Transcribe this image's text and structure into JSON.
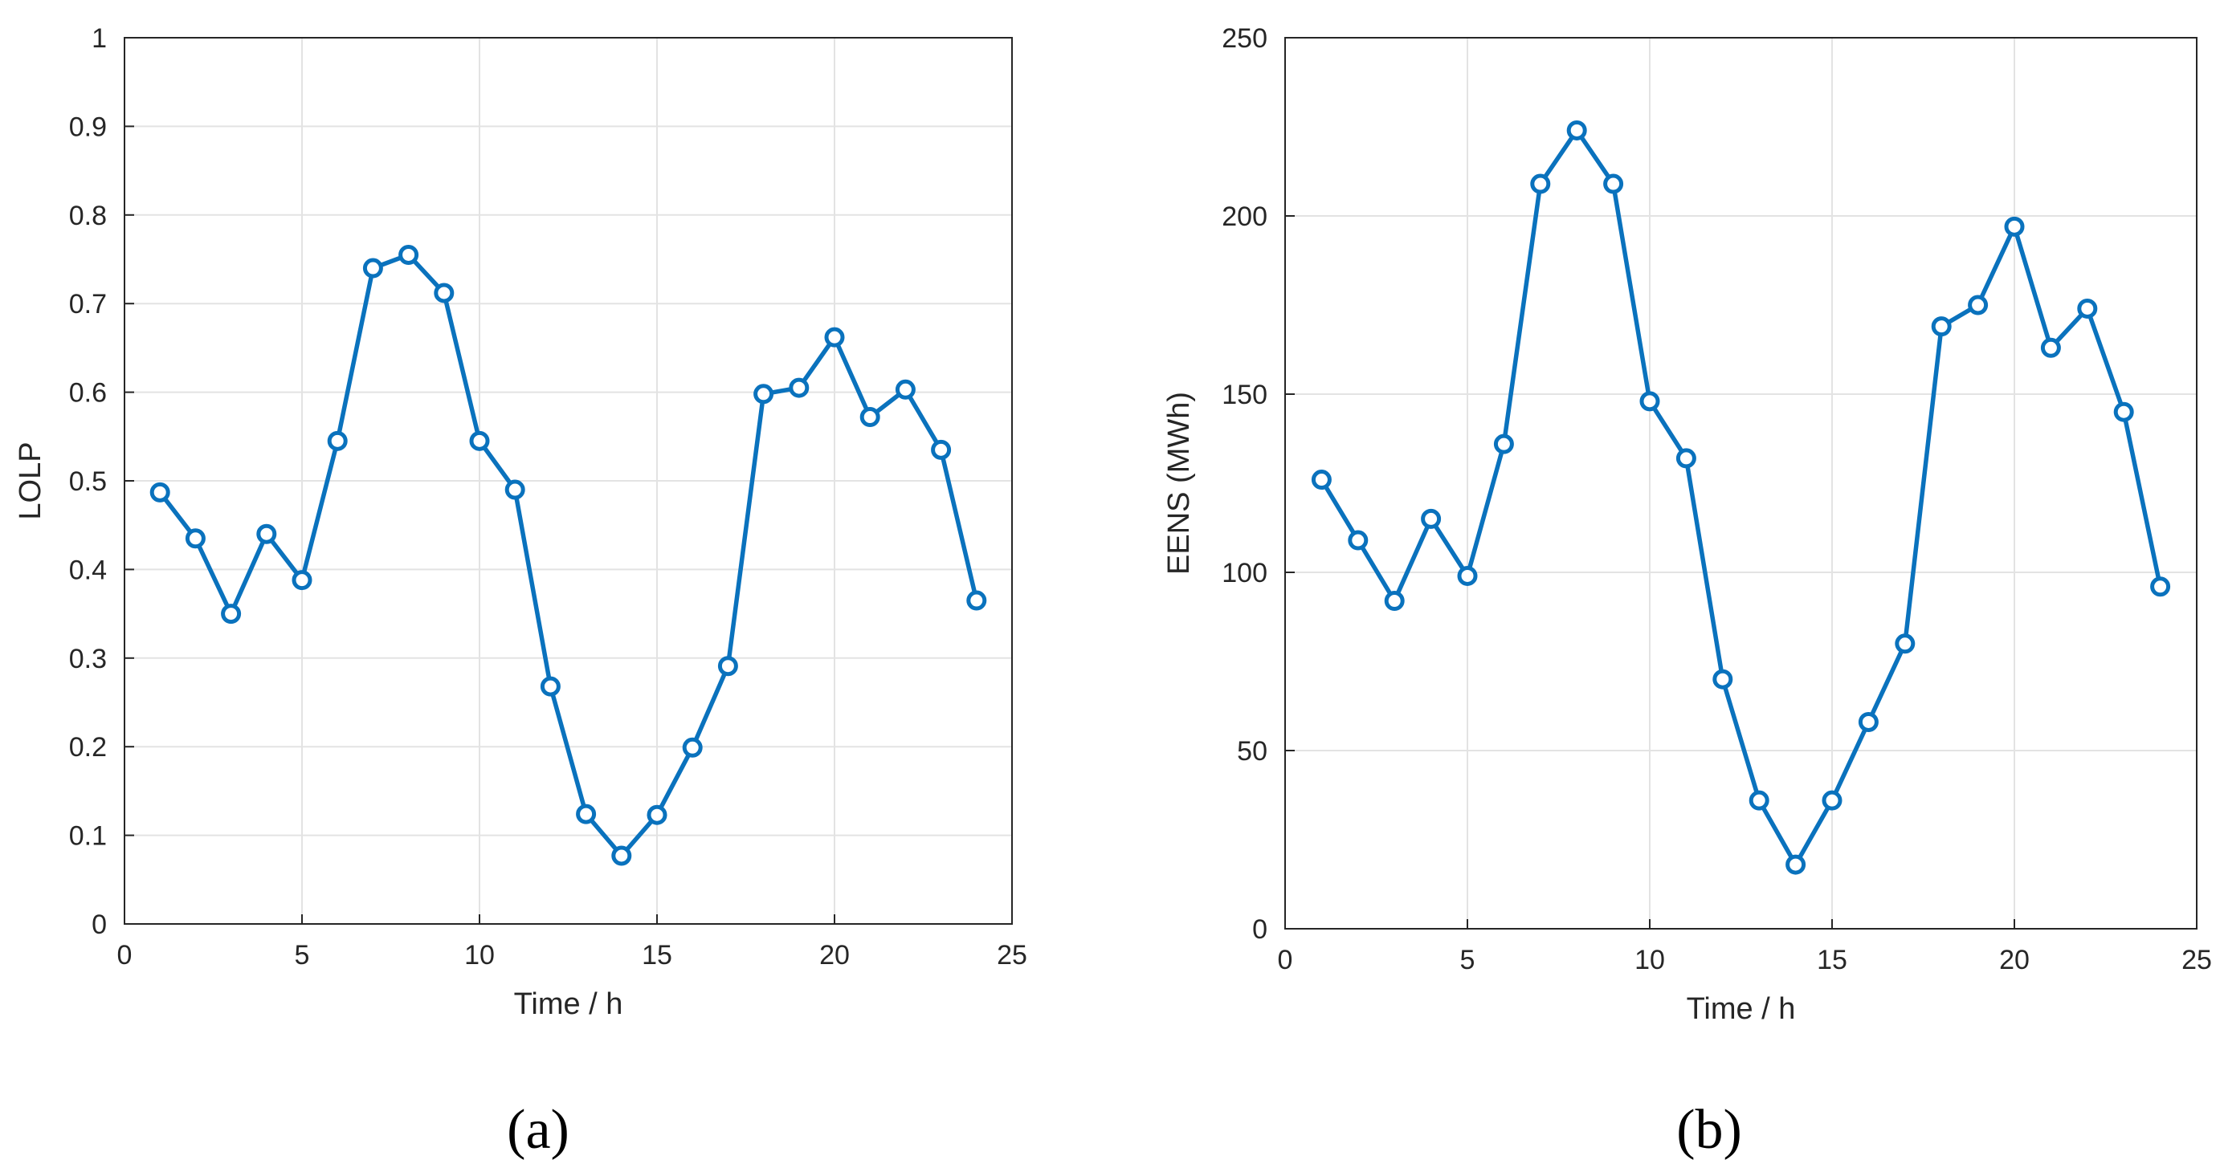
{
  "chart_data": [
    {
      "type": "line",
      "panel_label": "(a)",
      "xlabel": "Time / h",
      "ylabel": "LOLP",
      "xlim": [
        0,
        25
      ],
      "ylim": [
        0,
        1
      ],
      "xticks": [
        "0",
        "5",
        "10",
        "15",
        "20",
        "25"
      ],
      "yticks": [
        "0",
        "0.1",
        "0.2",
        "0.3",
        "0.4",
        "0.5",
        "0.6",
        "0.7",
        "0.8",
        "0.9",
        "1"
      ],
      "grid": true,
      "series": [
        {
          "color": "#0a72bd",
          "marker": "circle",
          "x": [
            1,
            2,
            3,
            4,
            5,
            6,
            7,
            8,
            9,
            10,
            11,
            12,
            13,
            14,
            15,
            16,
            17,
            18,
            19,
            20,
            21,
            22,
            23,
            24
          ],
          "y": [
            0.487,
            0.435,
            0.35,
            0.44,
            0.388,
            0.545,
            0.74,
            0.755,
            0.712,
            0.545,
            0.49,
            0.268,
            0.124,
            0.077,
            0.123,
            0.199,
            0.291,
            0.598,
            0.605,
            0.662,
            0.572,
            0.603,
            0.535,
            0.365
          ]
        }
      ]
    },
    {
      "type": "line",
      "panel_label": "(b)",
      "xlabel": "Time / h",
      "ylabel": "EENS (MWh)",
      "xlim": [
        0,
        25
      ],
      "ylim": [
        0,
        250
      ],
      "xticks": [
        "0",
        "5",
        "10",
        "15",
        "20",
        "25"
      ],
      "yticks": [
        "0",
        "50",
        "100",
        "150",
        "200",
        "250"
      ],
      "grid": true,
      "series": [
        {
          "color": "#0a72bd",
          "marker": "circle",
          "x": [
            1,
            2,
            3,
            4,
            5,
            6,
            7,
            8,
            9,
            10,
            11,
            12,
            13,
            14,
            15,
            16,
            17,
            18,
            19,
            20,
            21,
            22,
            23,
            24
          ],
          "y": [
            126,
            109,
            92,
            115,
            99,
            136,
            209,
            224,
            209,
            148,
            132,
            70,
            36,
            18,
            36,
            58,
            80,
            169,
            175,
            197,
            163,
            174,
            145,
            96
          ]
        }
      ]
    }
  ]
}
